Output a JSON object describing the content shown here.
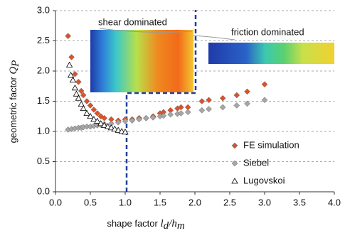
{
  "chart_data": {
    "type": "scatter",
    "xlabel": {
      "text": "shape factor",
      "var": "l",
      "sub1": "d",
      "mid": "/h",
      "sub2": "m"
    },
    "ylabel": {
      "text": "geometric factor",
      "var": "Q",
      "sub": "P"
    },
    "annotations": [
      "shear dominated",
      "friction dominated"
    ],
    "xlim": [
      0,
      4
    ],
    "ylim": [
      0,
      3
    ],
    "xticks": [
      {
        "value": 0,
        "label": "0.0"
      },
      {
        "value": 0.5,
        "label": "0.5"
      },
      {
        "value": 1,
        "label": "1.0"
      },
      {
        "value": 1.5,
        "label": "1.5"
      },
      {
        "value": 2,
        "label": "2.0"
      },
      {
        "value": 2.5,
        "label": "2.5"
      },
      {
        "value": 3,
        "label": "3.0"
      },
      {
        "value": 3.5,
        "label": "3.5"
      },
      {
        "value": 4,
        "label": "4.0"
      }
    ],
    "yticks": [
      {
        "value": 0,
        "label": "0.0"
      },
      {
        "value": 0.5,
        "label": "0.5"
      },
      {
        "value": 1,
        "label": "1.0"
      },
      {
        "value": 1.5,
        "label": "1.5"
      },
      {
        "value": 2,
        "label": "2.0"
      },
      {
        "value": 2.5,
        "label": "2.5"
      },
      {
        "value": 3,
        "label": "3.0"
      }
    ],
    "grid": true,
    "legend": "lower right",
    "series": [
      {
        "name": "FE simulation",
        "color": "#d9532c",
        "marker": "diamond",
        "x": [
          0.18,
          0.23,
          0.28,
          0.33,
          0.37,
          0.4,
          0.45,
          0.5,
          0.55,
          0.6,
          0.65,
          0.7,
          0.8,
          0.9,
          1.0,
          1.1,
          1.2,
          1.3,
          1.4,
          1.5,
          1.55,
          1.65,
          1.75,
          1.8,
          1.9,
          2.1,
          2.2,
          2.4,
          2.6,
          2.75,
          3.0
        ],
        "values": [
          2.58,
          2.23,
          1.95,
          1.82,
          1.67,
          1.6,
          1.5,
          1.43,
          1.36,
          1.3,
          1.25,
          1.22,
          1.2,
          1.18,
          1.2,
          1.2,
          1.22,
          1.22,
          1.25,
          1.3,
          1.32,
          1.35,
          1.38,
          1.4,
          1.4,
          1.5,
          1.52,
          1.55,
          1.6,
          1.66,
          1.78
        ]
      },
      {
        "name": "Siebel",
        "color": "#a6a6a6",
        "marker": "diamond",
        "x": [
          0.18,
          0.23,
          0.28,
          0.33,
          0.37,
          0.4,
          0.45,
          0.5,
          0.55,
          0.6,
          0.65,
          0.7,
          0.8,
          0.9,
          1.0,
          1.1,
          1.2,
          1.3,
          1.4,
          1.5,
          1.55,
          1.65,
          1.75,
          1.8,
          1.9,
          2.1,
          2.2,
          2.4,
          2.6,
          2.75,
          3.0
        ],
        "values": [
          1.03,
          1.04,
          1.05,
          1.06,
          1.06,
          1.07,
          1.08,
          1.08,
          1.09,
          1.1,
          1.11,
          1.12,
          1.13,
          1.15,
          1.17,
          1.18,
          1.2,
          1.22,
          1.23,
          1.25,
          1.26,
          1.28,
          1.29,
          1.3,
          1.32,
          1.35,
          1.37,
          1.4,
          1.43,
          1.46,
          1.52
        ]
      },
      {
        "name": "Lugovskoi",
        "color": "#ffffff",
        "marker": "triangle",
        "x": [
          0.2,
          0.22,
          0.25,
          0.28,
          0.3,
          0.33,
          0.37,
          0.4,
          0.45,
          0.5,
          0.55,
          0.6,
          0.65,
          0.7,
          0.75,
          0.8,
          0.85,
          0.9,
          0.95,
          1.0
        ],
        "values": [
          2.1,
          1.93,
          1.85,
          1.72,
          1.62,
          1.55,
          1.45,
          1.38,
          1.3,
          1.25,
          1.2,
          1.17,
          1.13,
          1.1,
          1.08,
          1.06,
          1.04,
          1.02,
          1.0,
          0.99
        ]
      }
    ]
  }
}
